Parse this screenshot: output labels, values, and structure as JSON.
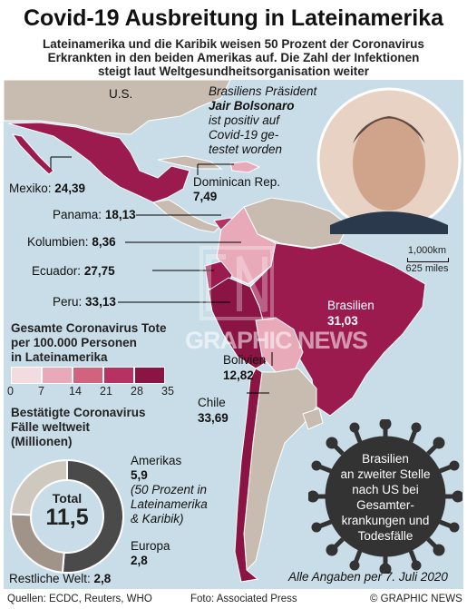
{
  "title": "Covid-19 Ausbreitung in Lateinamerika",
  "subtitle_lines": [
    "Lateinamerika und die Karibik weisen 50 Prozent der Coronavirus",
    "Erkrankten in den beiden Amerikas auf.  Die Zahl der Infektionen",
    "steigt laut Weltgesundheitsorganisation weiter"
  ],
  "map": {
    "us_label": "U.S.",
    "countries": [
      {
        "name": "Mexiko:",
        "value": "24,39"
      },
      {
        "name": "Dominican Rep.",
        "value": "7,49"
      },
      {
        "name": "Panama:",
        "value": "18,13"
      },
      {
        "name": "Kolumbien:",
        "value": "8,36"
      },
      {
        "name": "Ecuador:",
        "value": "27,75"
      },
      {
        "name": "Peru:",
        "value": "33,13"
      },
      {
        "name": "Brasilien",
        "value": "31,03"
      },
      {
        "name": "Bolivien",
        "value": "12,82"
      },
      {
        "name": "Chile",
        "value": "33,69"
      }
    ],
    "scale": {
      "km": "1,000km",
      "miles": "625 miles"
    },
    "watermark": "GRAPHIC NEWS"
  },
  "photo_note": {
    "line1": "Brasiliens Präsident",
    "name": "Jair Bolsonaro",
    "line3": "ist positiv auf",
    "line4": "Covid-19 ge-",
    "line5": "testet worden"
  },
  "legend": {
    "title_lines": [
      "Gesamte Coronavirus Tote",
      "per 100.000 Personen",
      "in Lateinamerika"
    ],
    "colors": [
      "#f3dbe0",
      "#e8a9b9",
      "#d2637f",
      "#b53262",
      "#8a1444"
    ],
    "ticks": [
      "0",
      "7",
      "14",
      "21",
      "28",
      "35"
    ]
  },
  "confirmed": {
    "title_lines": [
      "Bestätigte Coronavirus",
      "Fälle weltweit",
      "(Millionen)"
    ],
    "total_label": "Total",
    "total_value": "11,5",
    "segments": [
      {
        "name": "Amerikas",
        "value": "5,9",
        "value_num": 5.9,
        "color": "#4a4a4a",
        "note_lines": [
          "(50 Prozent in",
          "Lateinamerika",
          "& Karibik)"
        ]
      },
      {
        "name": "Europa",
        "value": "2,8",
        "value_num": 2.8,
        "color": "#a09488",
        "note_lines": []
      },
      {
        "name": "Restliche Welt:",
        "value": "2,8",
        "value_num": 2.8,
        "color": "#cfc8bf",
        "note_lines": []
      }
    ]
  },
  "virus_text": [
    "Brasilien",
    "an zweiter Stelle",
    "nach US bei",
    "Gesamter-",
    "krankungen und",
    "Todesfälle"
  ],
  "date_note": "Alle Angaben per 7. Juli 2020",
  "footer": {
    "sources": "Quellen: ECDC, Reuters, WHO",
    "photo": "Foto: Associated Press",
    "copyright": "© GRAPHIC NEWS"
  }
}
